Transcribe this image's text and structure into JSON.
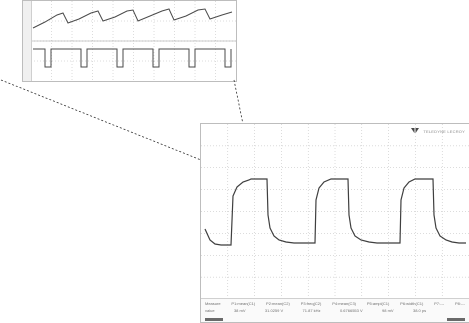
{
  "colors": {
    "trace": "#3f3f3f",
    "grid": "#b8b8b8",
    "zoom_line": "#303030",
    "background": "#ffffff",
    "panel": "#f4f4f4"
  },
  "scope": {
    "brand_text": "TELEDYNE LECROY",
    "logo_icon": "teledyne-lecroy-logo",
    "status": {
      "labels": [
        "Measure",
        "P1:mean(C1)",
        "P2:mean(C2)",
        "P3:freq(C2)",
        "P4:mean(C3)",
        "P5:ampl(C1)",
        "P6:width(C1)",
        "P7:---",
        "P8:---"
      ],
      "values": [
        "value",
        "38 mV",
        "31.0259 V",
        "71.87 kHz",
        "0.6766553 V",
        "98 mV",
        "38.0 ps",
        "",
        ""
      ]
    }
  },
  "icons": {
    "zoom_circle": "zoom-circle-icon",
    "logo": "teledyne-lecroy-logo"
  }
}
